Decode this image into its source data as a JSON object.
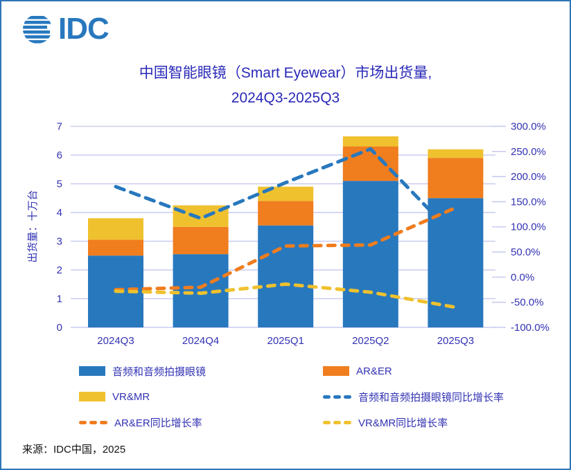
{
  "logo": {
    "text": "IDC"
  },
  "title": {
    "line1": "中国智能眼镜（Smart Eyewear）市场出货量,",
    "line2": "2024Q3-2025Q3"
  },
  "source": {
    "text": "来源：IDC中国，2025"
  },
  "colors": {
    "brand_blue": "#2878BE",
    "bar_blue": "#2878BE",
    "bar_orange": "#F07D1E",
    "bar_yellow": "#EFC12E",
    "text_indigo": "#3232B4",
    "title_indigo": "#2929B8",
    "grid": "#C9CBF0",
    "frame_border": "#2E75B6",
    "source_text": "#111111"
  },
  "chart_data": {
    "type": "bar",
    "subtype": "stacked-bars-with-dashed-growth-lines",
    "categories": [
      "2024Q3",
      "2024Q4",
      "2025Q1",
      "2025Q2",
      "2025Q3"
    ],
    "bar_series": [
      {
        "name": "音频和音频拍摄眼镜",
        "color": "bar_blue",
        "values": [
          2.5,
          2.55,
          3.55,
          5.1,
          4.5
        ]
      },
      {
        "name": "AR&ER",
        "color": "bar_orange",
        "values": [
          0.55,
          0.95,
          0.85,
          1.2,
          1.4
        ]
      },
      {
        "name": "VR&MR",
        "color": "bar_yellow",
        "values": [
          0.75,
          0.75,
          0.5,
          0.35,
          0.3
        ]
      }
    ],
    "bar_totals": [
      3.8,
      4.25,
      4.9,
      6.65,
      6.2
    ],
    "line_series": [
      {
        "name": "音频和音频拍摄眼镜同比增长率",
        "color": "bar_blue",
        "values_pct": [
          180,
          117,
          188,
          255,
          80
        ]
      },
      {
        "name": "AR&ER同比增长率",
        "color": "bar_orange",
        "values_pct": [
          -25,
          -20,
          62,
          64,
          138
        ]
      },
      {
        "name": "VR&MR同比增长率",
        "color": "bar_yellow",
        "values_pct": [
          -28,
          -32,
          -14,
          -30,
          -60
        ]
      }
    ],
    "left_axis": {
      "label": "出货量：十万台",
      "ticks": [
        "0",
        "1",
        "2",
        "3",
        "4",
        "5",
        "6",
        "7"
      ],
      "min": 0,
      "max": 7
    },
    "right_axis": {
      "ticks": [
        {
          "label": "300.0%",
          "value": 300
        },
        {
          "label": "250.0%",
          "value": 250
        },
        {
          "label": "200.0%",
          "value": 200
        },
        {
          "label": "150.0%",
          "value": 150
        },
        {
          "label": "100.0%",
          "value": 100
        },
        {
          "label": "50.0%",
          "value": 50
        },
        {
          "label": "0.0%",
          "value": 0
        },
        {
          "label": "-50.0%",
          "value": -50
        },
        {
          "label": "-100.0%",
          "value": -100
        }
      ],
      "min": -100,
      "max": 300
    },
    "grid": "horizontal-on",
    "legend_position": "bottom-two-columns",
    "legend": [
      {
        "label": "音频和音频拍摄眼镜",
        "swatch": "fill",
        "color": "bar_blue"
      },
      {
        "label": "AR&ER",
        "swatch": "fill",
        "color": "bar_orange"
      },
      {
        "label": "VR&MR",
        "swatch": "fill",
        "color": "bar_yellow"
      },
      {
        "label": "音频和音频拍摄眼镜同比增长率",
        "swatch": "dash",
        "color": "bar_blue"
      },
      {
        "label": "AR&ER同比增长率",
        "swatch": "dash",
        "color": "bar_orange"
      },
      {
        "label": "VR&MR同比增长率",
        "swatch": "dash",
        "color": "bar_yellow"
      }
    ]
  }
}
